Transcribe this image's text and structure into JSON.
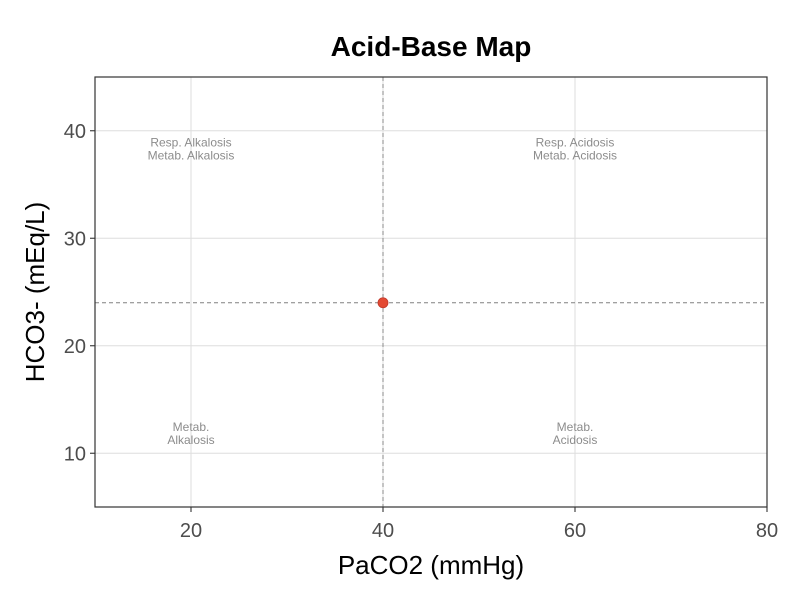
{
  "chart_data": {
    "type": "scatter",
    "title": "Acid-Base Map",
    "xlabel": "PaCO2 (mmHg)",
    "ylabel": "HCO3- (mEq/L)",
    "xlim": [
      10,
      80
    ],
    "ylim": [
      5,
      45
    ],
    "x_ticks": [
      20,
      40,
      60,
      80
    ],
    "y_ticks": [
      10,
      20,
      30,
      40
    ],
    "grid": true,
    "reference_lines": {
      "x": 40,
      "y": 24,
      "style": "dashed"
    },
    "points": [
      {
        "x": 40,
        "y": 24
      }
    ],
    "point_color": "#e34a33",
    "annotations": [
      {
        "x": 20,
        "y": 38,
        "lines": [
          "Resp. Alkalosis",
          "Metab. Alkalosis"
        ]
      },
      {
        "x": 60,
        "y": 38,
        "lines": [
          "Resp. Acidosis",
          "Metab. Acidosis"
        ]
      },
      {
        "x": 20,
        "y": 11.5,
        "lines": [
          "Metab.",
          "Alkalosis"
        ]
      },
      {
        "x": 60,
        "y": 11.5,
        "lines": [
          "Metab.",
          "Acidosis"
        ]
      }
    ]
  }
}
